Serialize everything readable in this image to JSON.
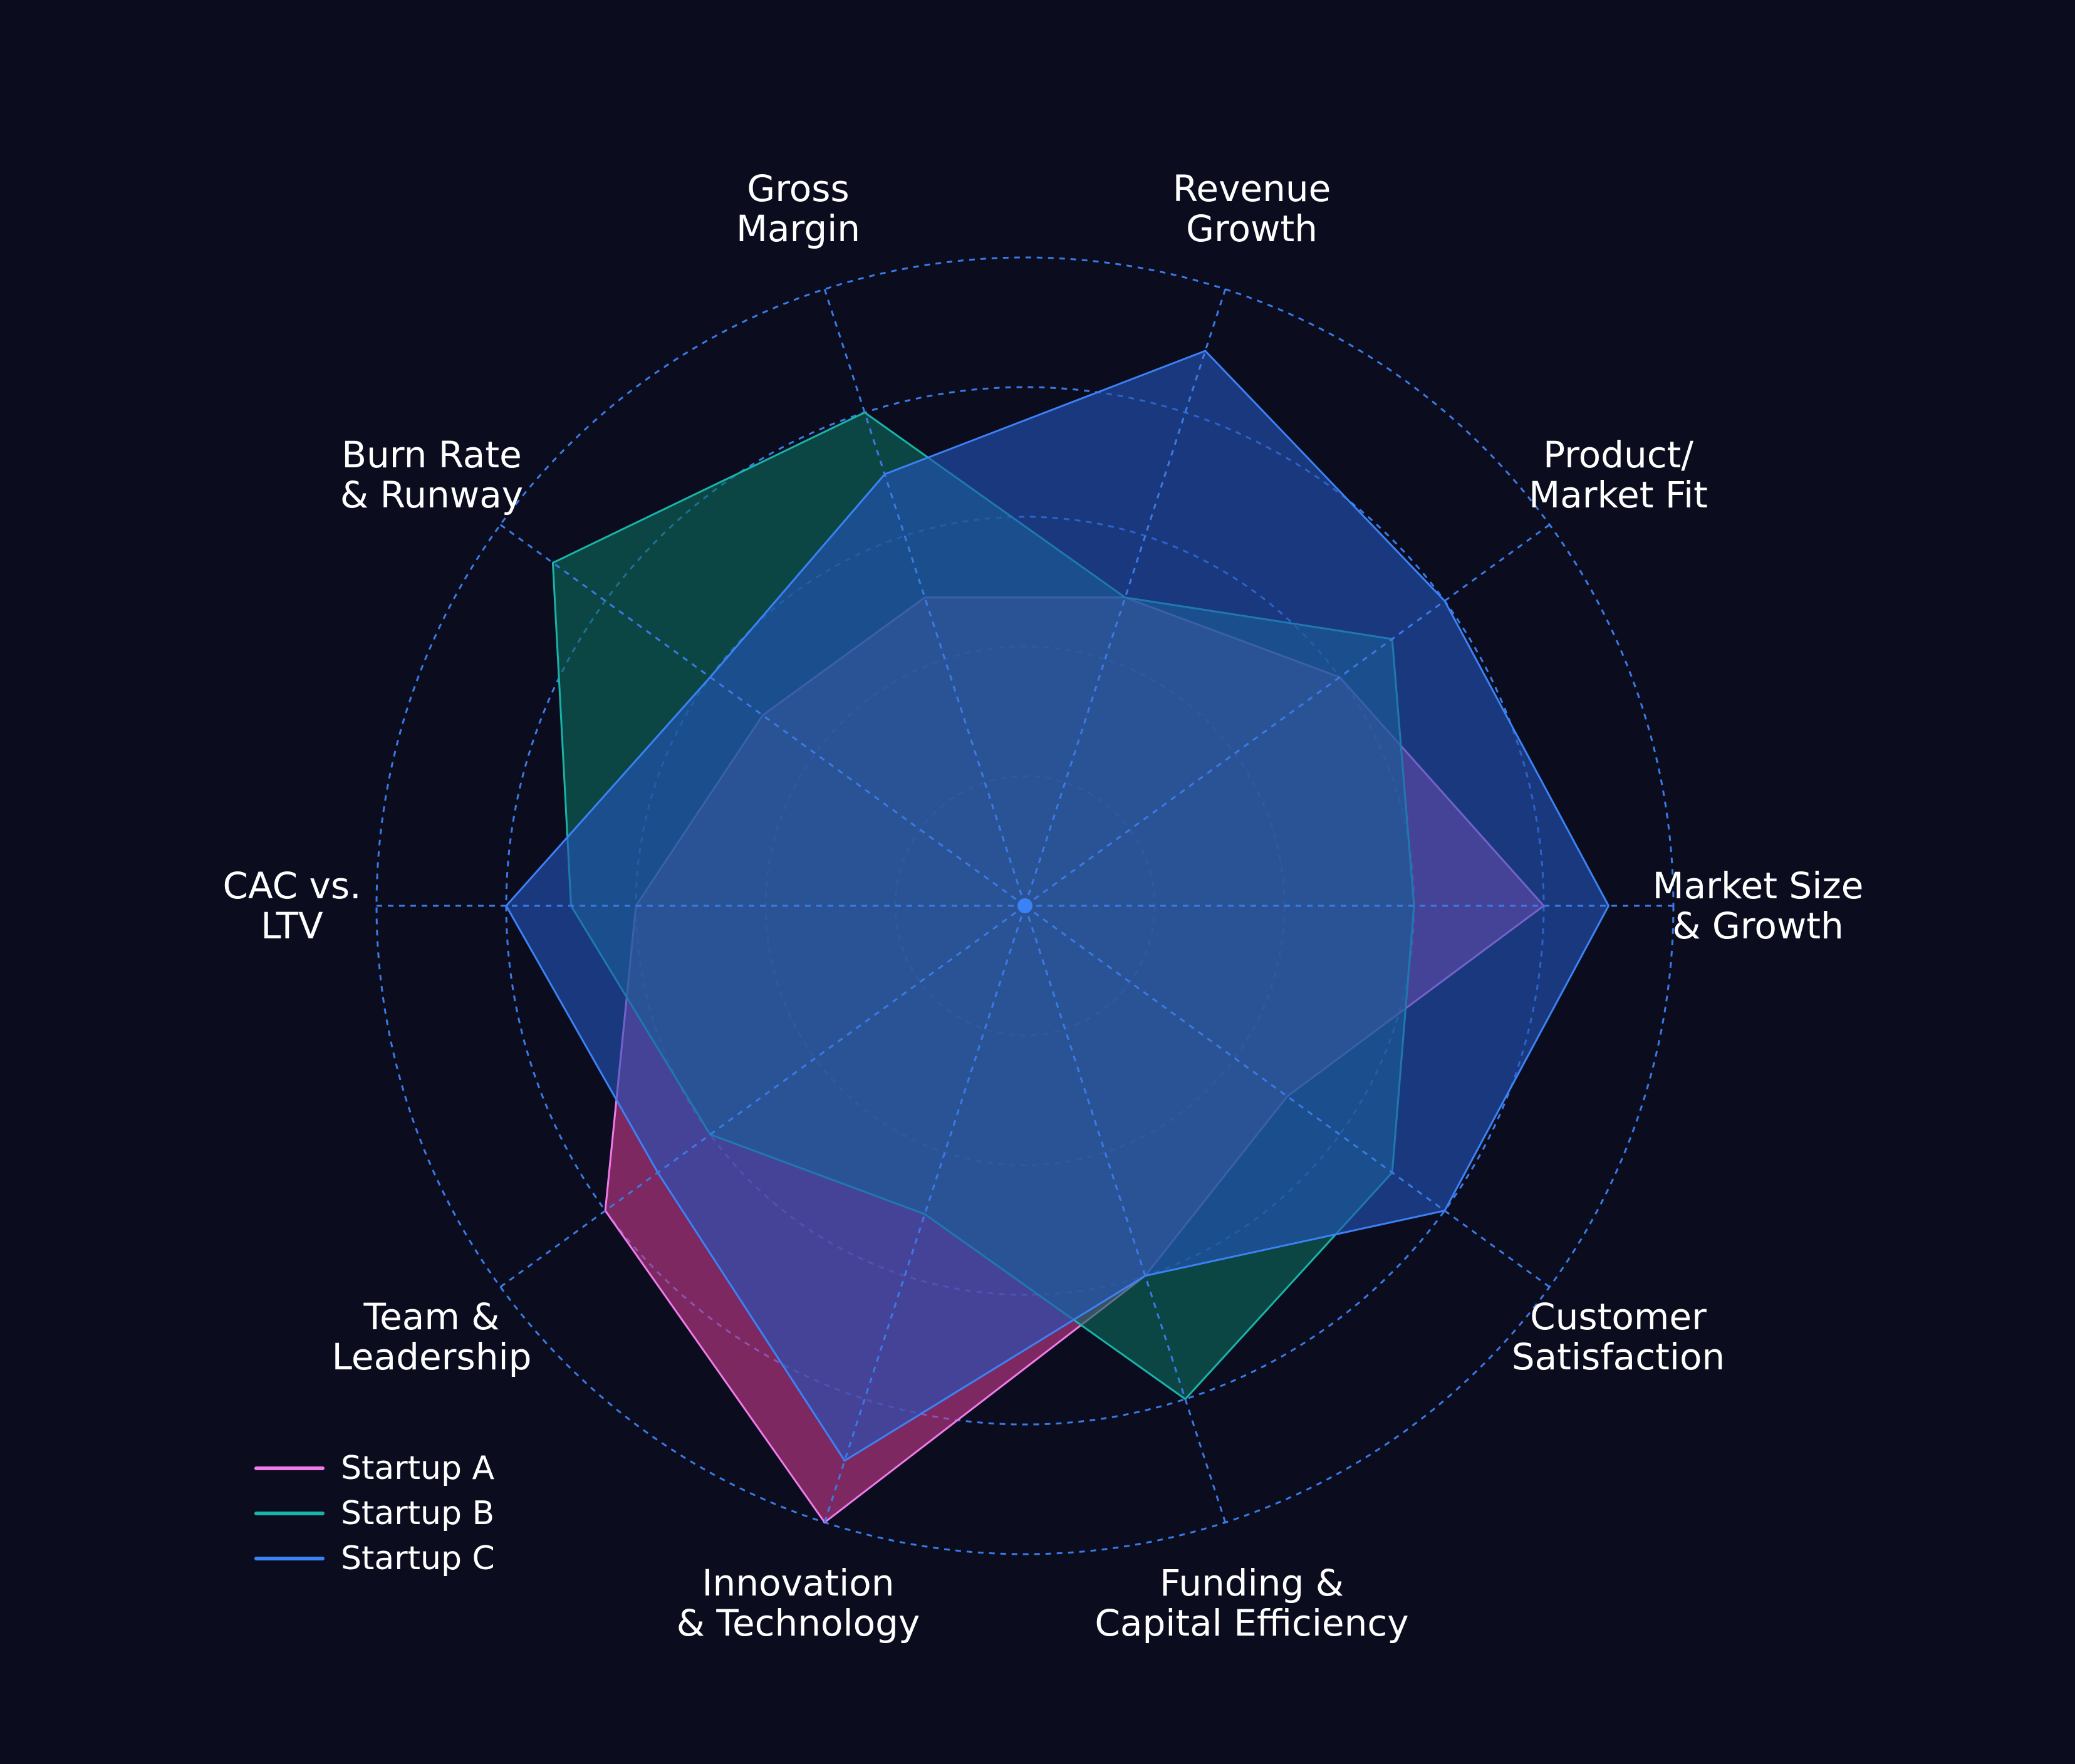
{
  "chart_data": {
    "type": "radar",
    "axes": [
      [
        "Market Size",
        "& Growth"
      ],
      [
        "Product/",
        "Market Fit"
      ],
      [
        "Revenue",
        "Growth"
      ],
      [
        "Gross",
        "Margin"
      ],
      [
        "Burn Rate",
        "& Runway"
      ],
      [
        "CAC vs.",
        "LTV"
      ],
      [
        "Team &",
        "Leadership"
      ],
      [
        "Innovation",
        "& Technology"
      ],
      [
        "Funding &",
        "Capital Efficiency"
      ],
      [
        "Customer",
        "Satisfaction"
      ]
    ],
    "rmax": 10,
    "grid_rings": [
      1,
      2,
      3,
      4,
      5
    ],
    "series": [
      {
        "name": "Startup A",
        "color": "#f07bea",
        "fill": "#c33a8a",
        "values": [
          8,
          6,
          5,
          5,
          5,
          6,
          8,
          10,
          6,
          5
        ]
      },
      {
        "name": "Startup B",
        "color": "#19b3a8",
        "fill": "#0b6a5e",
        "values": [
          6,
          7,
          5,
          8,
          9,
          7,
          6,
          5,
          8,
          7
        ]
      },
      {
        "name": "Startup C",
        "color": "#3b82f6",
        "fill": "#2454b8",
        "values": [
          9,
          8,
          9,
          7,
          6,
          8,
          7,
          9,
          6,
          8
        ]
      }
    ],
    "legend_position": "bottom-left",
    "grid": true
  },
  "colors": {
    "background": "#0b0c1d",
    "grid": "#3a7ae6",
    "center_dot": "#3b82f6"
  }
}
